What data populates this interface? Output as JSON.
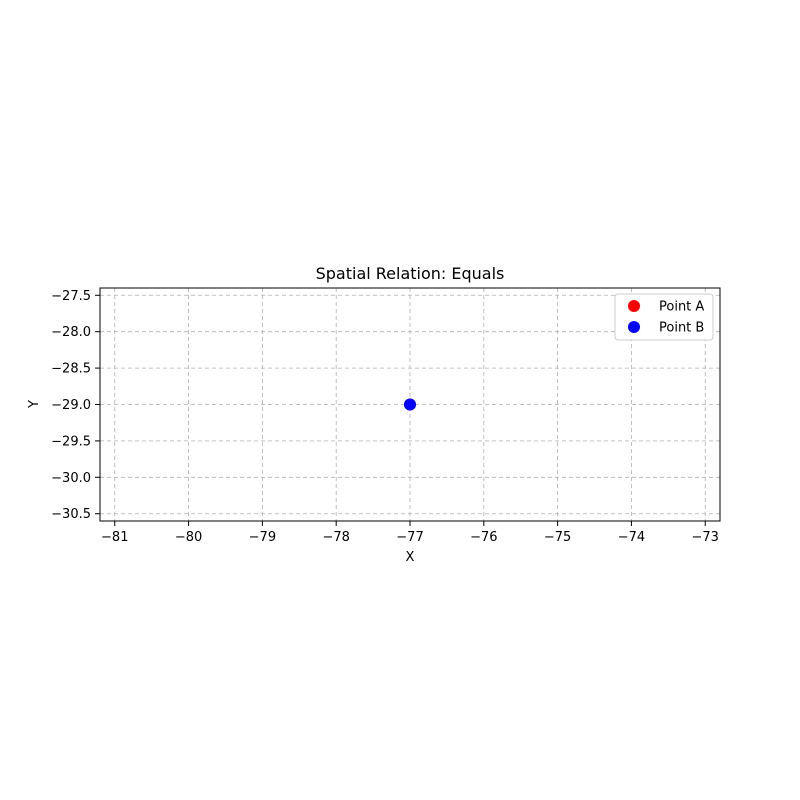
{
  "chart_data": {
    "type": "scatter",
    "title": "Spatial Relation: Equals",
    "xlabel": "X",
    "ylabel": "Y",
    "xlim": [
      -81.2,
      -72.8
    ],
    "ylim": [
      -30.6,
      -27.4
    ],
    "xticks": [
      -81,
      -80,
      -79,
      -78,
      -77,
      -76,
      -75,
      -74,
      -73
    ],
    "yticks": [
      -27.5,
      -28.0,
      -28.5,
      -29.0,
      -29.5,
      -30.0,
      -30.5
    ],
    "xtick_labels": [
      "−81",
      "−80",
      "−79",
      "−78",
      "−77",
      "−76",
      "−75",
      "−74",
      "−73"
    ],
    "ytick_labels": [
      "−27.5",
      "−28.0",
      "−28.5",
      "−29.0",
      "−29.5",
      "−30.0",
      "−30.5"
    ],
    "grid": true,
    "legend_position": "top-right",
    "series": [
      {
        "name": "Point A",
        "color": "#ff0000",
        "points": [
          {
            "x": -77,
            "y": -29
          }
        ]
      },
      {
        "name": "Point B",
        "color": "#0000ff",
        "points": [
          {
            "x": -77,
            "y": -29
          }
        ]
      }
    ]
  }
}
